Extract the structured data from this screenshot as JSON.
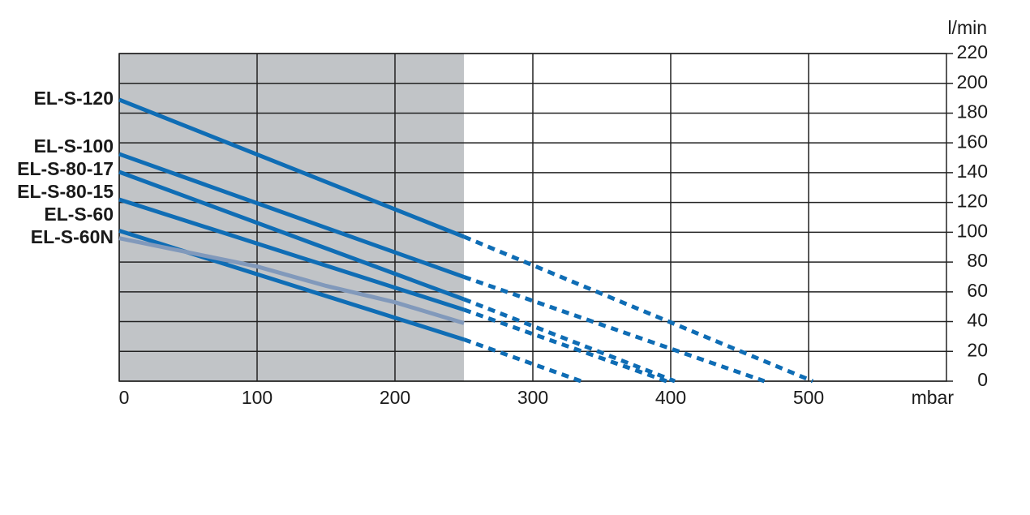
{
  "chart_data": {
    "type": "line",
    "x_label": "mbar",
    "y_label": "l/min",
    "xlim": [
      0,
      600
    ],
    "ylim": [
      0,
      220
    ],
    "xticks": [
      0,
      100,
      200,
      300,
      400,
      500
    ],
    "yticks": [
      0,
      20,
      40,
      60,
      80,
      100,
      120,
      140,
      160,
      180,
      200,
      220
    ],
    "grid": true,
    "shaded_region": {
      "x": [
        0,
        250
      ],
      "color": "#c1c4c7"
    },
    "series": [
      {
        "name": "EL-S-120",
        "color": "#0f6db5",
        "x": [
          0,
          250,
          503
        ],
        "values": [
          189,
          97,
          0
        ]
      },
      {
        "name": "EL-S-100",
        "color": "#0f6db5",
        "x": [
          0,
          250,
          468
        ],
        "values": [
          152.5,
          70,
          0
        ]
      },
      {
        "name": "EL-S-80-17",
        "color": "#0f6db5",
        "x": [
          0,
          250,
          403
        ],
        "values": [
          140.5,
          55,
          0
        ]
      },
      {
        "name": "EL-S-80-15",
        "color": "#0f6db5",
        "x": [
          0,
          250,
          397
        ],
        "values": [
          122,
          48,
          0
        ]
      },
      {
        "name": "EL-S-60",
        "color": "#0f6db5",
        "x": [
          0,
          250,
          335
        ],
        "values": [
          101,
          28,
          0
        ]
      },
      {
        "name": "EL-S-60N",
        "color": "#8199bb",
        "x": [
          0,
          100,
          150,
          200,
          250
        ],
        "values": [
          96,
          77,
          64,
          53,
          39
        ]
      }
    ]
  }
}
